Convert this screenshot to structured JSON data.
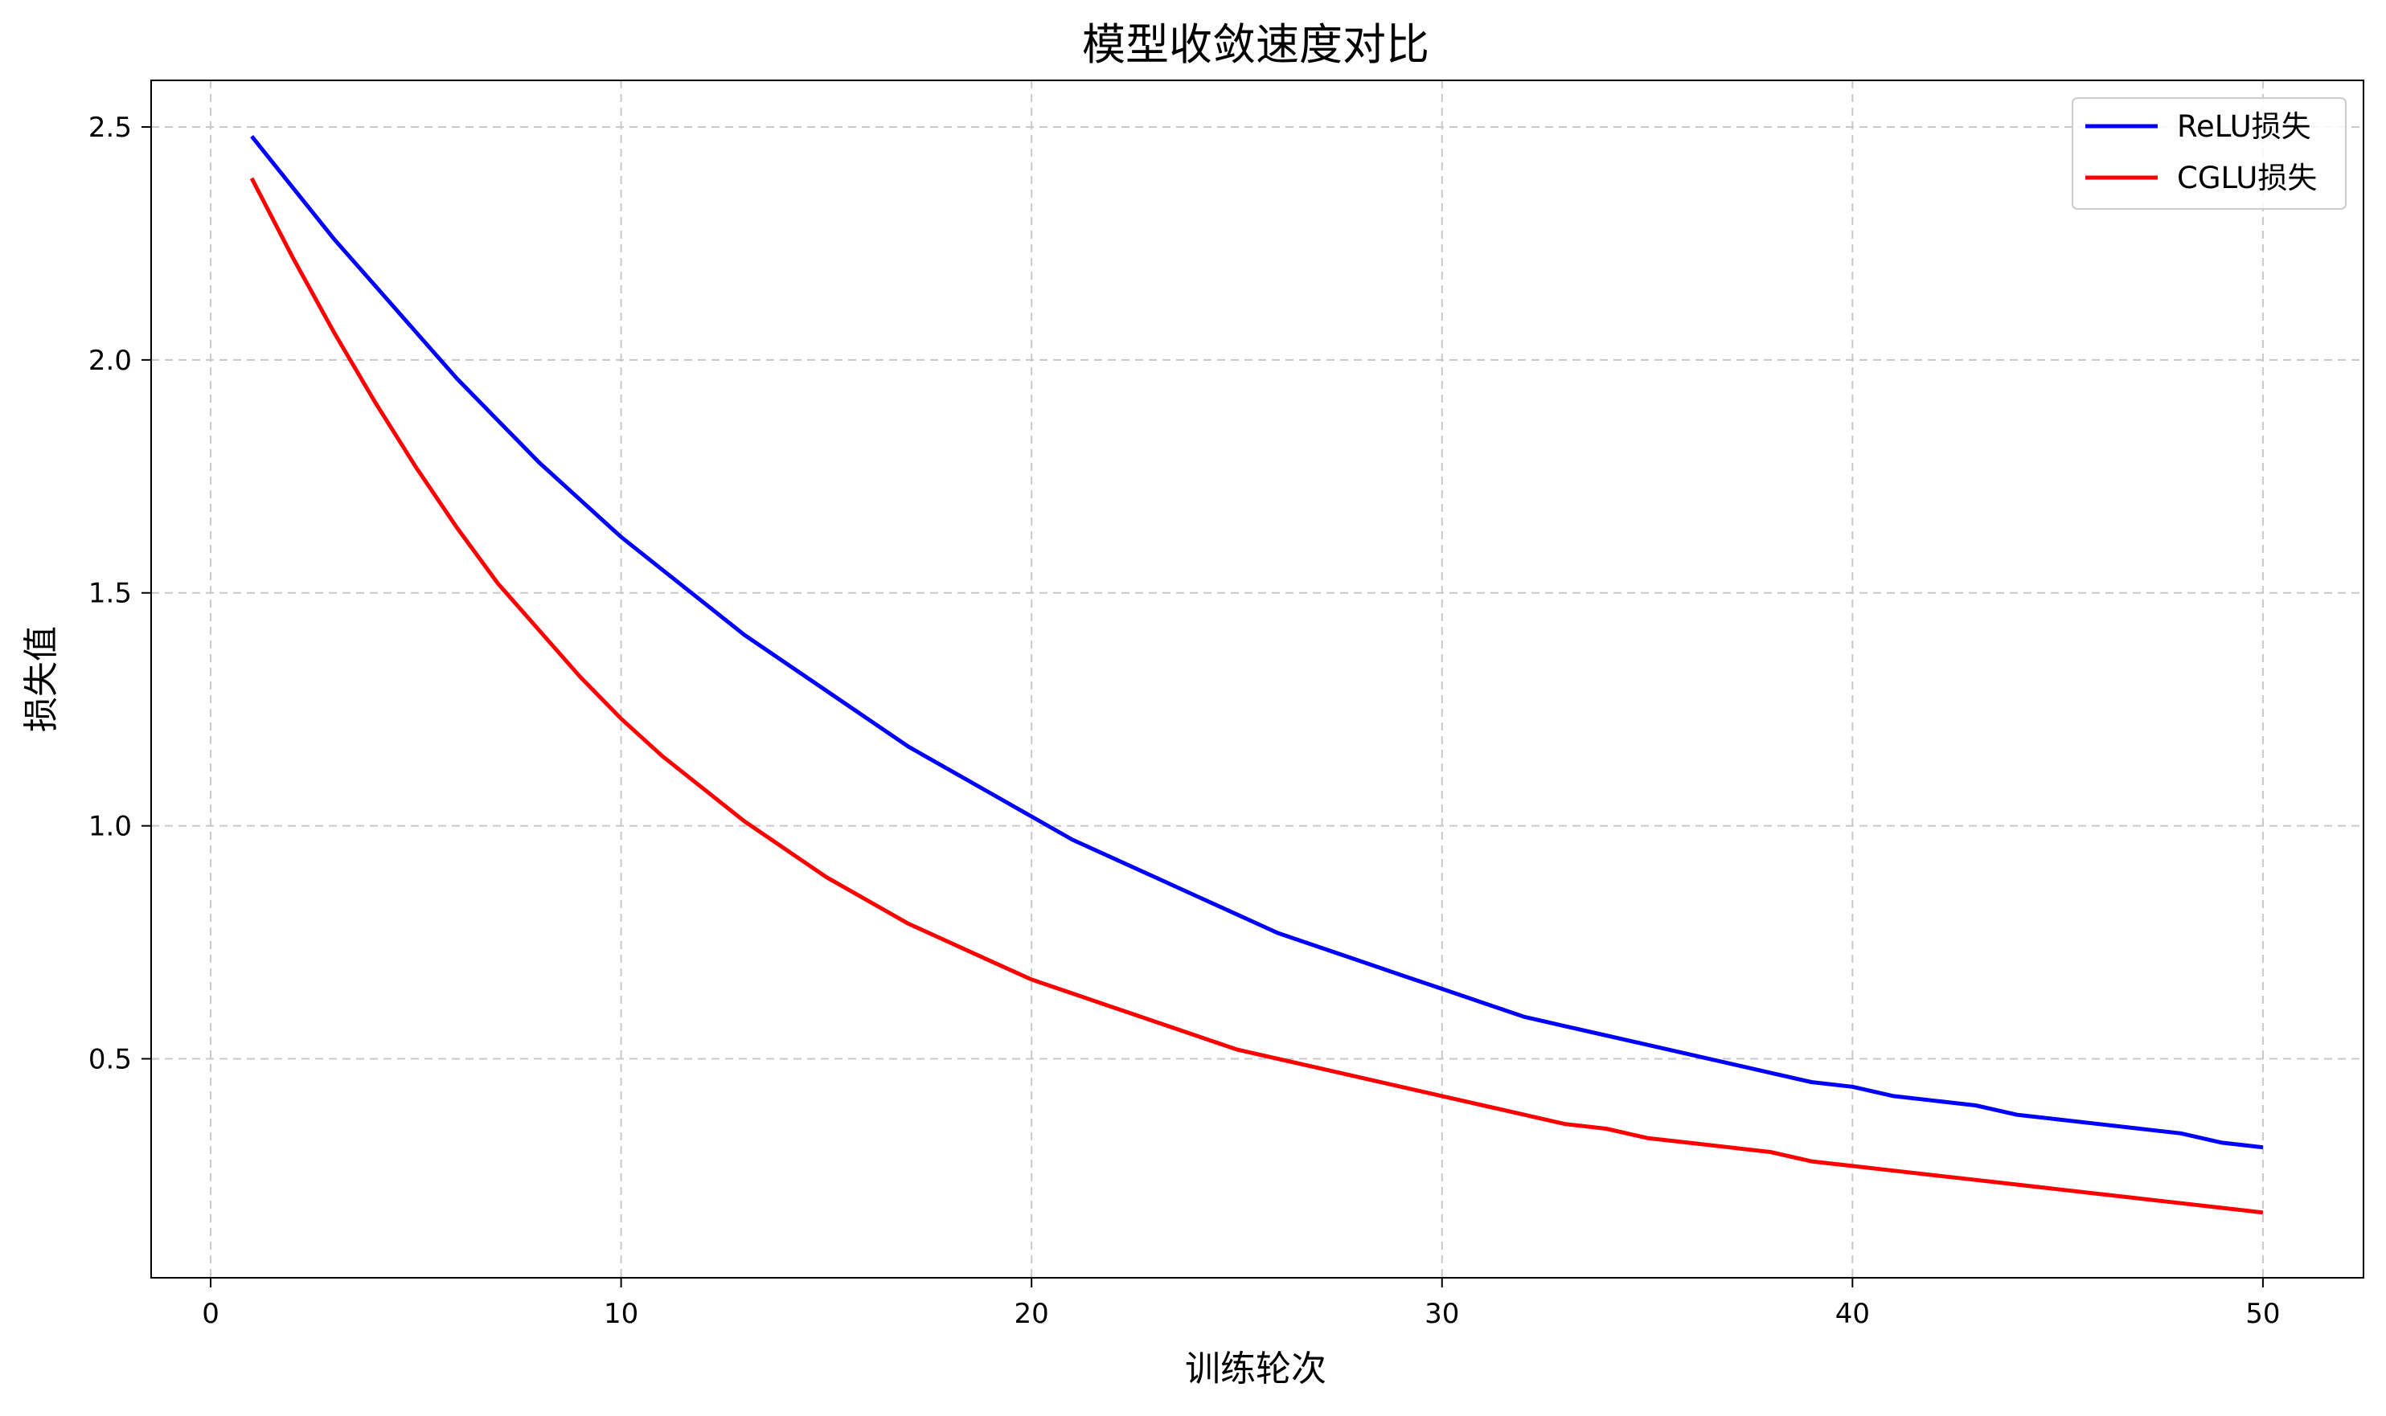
{
  "chart_data": {
    "type": "line",
    "title": "模型收敛速度对比",
    "xlabel": "训练轮次",
    "ylabel": "损失值",
    "xlim": [
      -1.45,
      52.45
    ],
    "ylim": [
      0.03,
      2.6
    ],
    "xticks": [
      0,
      10,
      20,
      30,
      40,
      50
    ],
    "yticks": [
      0.5,
      1.0,
      1.5,
      2.0,
      2.5
    ],
    "xtick_labels": [
      "0",
      "10",
      "20",
      "30",
      "40",
      "50"
    ],
    "ytick_labels": [
      "0.5",
      "1.0",
      "1.5",
      "2.0",
      "2.5"
    ],
    "grid": true,
    "legend_position": "top-right",
    "x": [
      1,
      2,
      3,
      4,
      5,
      6,
      7,
      8,
      9,
      10,
      11,
      12,
      13,
      14,
      15,
      16,
      17,
      18,
      19,
      20,
      21,
      22,
      23,
      24,
      25,
      26,
      27,
      28,
      29,
      30,
      31,
      32,
      33,
      34,
      35,
      36,
      37,
      38,
      39,
      40,
      41,
      42,
      43,
      44,
      45,
      46,
      47,
      48,
      49,
      50
    ],
    "series": [
      {
        "name": "ReLU损失",
        "color": "#0000ff",
        "values": [
          2.48,
          2.37,
          2.26,
          2.16,
          2.06,
          1.96,
          1.87,
          1.78,
          1.7,
          1.62,
          1.55,
          1.48,
          1.41,
          1.35,
          1.29,
          1.23,
          1.17,
          1.12,
          1.07,
          1.02,
          0.97,
          0.93,
          0.89,
          0.85,
          0.81,
          0.77,
          0.74,
          0.71,
          0.68,
          0.65,
          0.62,
          0.59,
          0.57,
          0.55,
          0.53,
          0.51,
          0.49,
          0.47,
          0.45,
          0.44,
          0.42,
          0.41,
          0.4,
          0.38,
          0.37,
          0.36,
          0.35,
          0.34,
          0.32,
          0.31
        ]
      },
      {
        "name": "CGLU损失",
        "color": "#ff0000",
        "values": [
          2.39,
          2.22,
          2.06,
          1.91,
          1.77,
          1.64,
          1.52,
          1.42,
          1.32,
          1.23,
          1.15,
          1.08,
          1.01,
          0.95,
          0.89,
          0.84,
          0.79,
          0.75,
          0.71,
          0.67,
          0.64,
          0.61,
          0.58,
          0.55,
          0.52,
          0.5,
          0.48,
          0.46,
          0.44,
          0.42,
          0.4,
          0.38,
          0.36,
          0.35,
          0.33,
          0.32,
          0.31,
          0.3,
          0.28,
          0.27,
          0.26,
          0.25,
          0.24,
          0.23,
          0.22,
          0.21,
          0.2,
          0.19,
          0.18,
          0.17
        ]
      }
    ]
  }
}
